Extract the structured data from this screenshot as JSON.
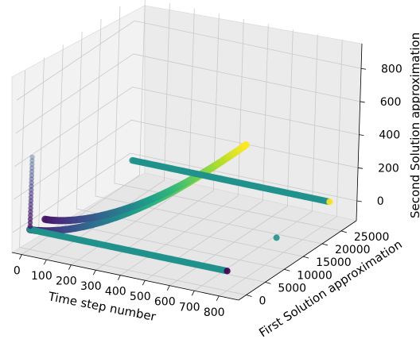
{
  "chart_data": {
    "type": "scatter3d",
    "xlabel": "Time step number",
    "ylabel": "First Solution approximation",
    "zlabel": "Second Solution approximation",
    "xticks": [
      "0",
      "100",
      "200",
      "300",
      "400",
      "500",
      "600",
      "700",
      "800"
    ],
    "yticks": [
      "0",
      "5000",
      "10000",
      "15000",
      "20000",
      "25000"
    ],
    "zticks": [
      "0",
      "200",
      "400",
      "600",
      "800"
    ],
    "xlim": [
      -40,
      880
    ],
    "ylim": [
      -2000,
      29000
    ],
    "zlim": [
      -120,
      950
    ],
    "grid": true,
    "colormap": "viridis",
    "series": [
      {
        "x_start": 0,
        "x_end": 800,
        "y": 0,
        "z": 0,
        "color_start": "#440154",
        "color_end": "#fde725",
        "shape": "curve-up"
      },
      {
        "x_start": 0,
        "x_end": 800,
        "y": 4000,
        "z": 0,
        "color_start": "#440154",
        "color_end": "#fde725",
        "shape": "curve-up"
      },
      {
        "x_start": 0,
        "x_end": 800,
        "y": 0,
        "z": 0,
        "color": "#21918c",
        "shape": "flat",
        "end_color": "#440154"
      },
      {
        "x_start": 0,
        "x_end": 800,
        "y": 27000,
        "z": 0,
        "color": "#21918c",
        "shape": "flat",
        "end_color": "#fde725"
      },
      {
        "x": 800,
        "y": 13000,
        "z": 0,
        "color": "#21918c",
        "shape": "point"
      }
    ]
  }
}
